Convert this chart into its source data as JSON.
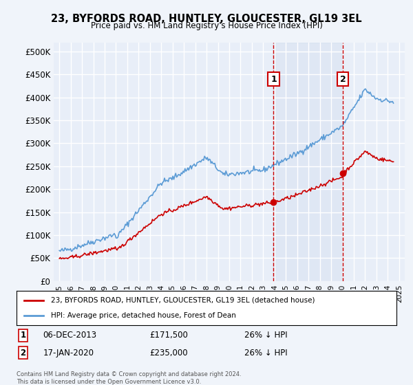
{
  "title": "23, BYFORDS ROAD, HUNTLEY, GLOUCESTER, GL19 3EL",
  "subtitle": "Price paid vs. HM Land Registry's House Price Index (HPI)",
  "ylabel_ticks": [
    "£0",
    "£50K",
    "£100K",
    "£150K",
    "£200K",
    "£250K",
    "£300K",
    "£350K",
    "£400K",
    "£450K",
    "£500K"
  ],
  "ytick_values": [
    0,
    50000,
    100000,
    150000,
    200000,
    250000,
    300000,
    350000,
    400000,
    450000,
    500000
  ],
  "ylim": [
    0,
    520000
  ],
  "xlim_start": 1994.5,
  "xlim_end": 2025.5,
  "background_color": "#f0f4fa",
  "plot_bg_color": "#e8eef8",
  "grid_color": "#ffffff",
  "sale1_date": "06-DEC-2013",
  "sale1_price": 171500,
  "sale1_year": 2013.92,
  "sale2_date": "17-JAN-2020",
  "sale2_price": 235000,
  "sale2_year": 2020.04,
  "hpi_line_color": "#5b9bd5",
  "sale_line_color": "#cc0000",
  "dashed_line_color": "#cc0000",
  "legend_label_hpi": "HPI: Average price, detached house, Forest of Dean",
  "legend_label_sale": "23, BYFORDS ROAD, HUNTLEY, GLOUCESTER, GL19 3EL (detached house)",
  "footnote": "Contains HM Land Registry data © Crown copyright and database right 2024.\nThis data is licensed under the Open Government Licence v3.0.",
  "annotation1": "1",
  "annotation2": "2",
  "ann1_table": "1    06-DEC-2013    £171,500    26% ↓ HPI",
  "ann2_table": "2    17-JAN-2020    £235,000    26% ↓ HPI"
}
